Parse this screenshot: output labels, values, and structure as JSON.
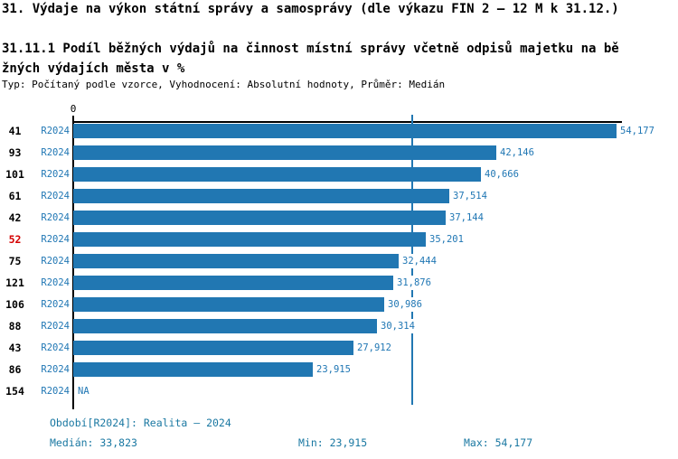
{
  "header": {
    "title": "31. Výdaje na výkon státní správy a samosprávy (dle výkazu FIN 2 – 12 M k 31.12.)",
    "subtitle": "31.11.1 Podíl běžných výdajů na činnost místní správy včetně odpisů majetku na běžných výdajích města v %",
    "meta": "Typ: Počítaný podle vzorce, Vyhodnocení: Absolutní hodnoty, Průměr: Medián"
  },
  "chart_data": {
    "type": "bar",
    "orientation": "horizontal",
    "axis_origin_label": "0",
    "categories": [
      "41",
      "93",
      "101",
      "61",
      "42",
      "52",
      "75",
      "121",
      "106",
      "88",
      "43",
      "86",
      "154"
    ],
    "series_label": "R2024",
    "values": [
      54177,
      42146,
      40666,
      37514,
      37144,
      35201,
      32444,
      31876,
      30986,
      30314,
      27912,
      23915,
      null
    ],
    "value_labels": [
      "54,177",
      "42,146",
      "40,666",
      "37,514",
      "37,144",
      "35,201",
      "32,444",
      "31,876",
      "30,986",
      "30,314",
      "27,912",
      "23,915",
      "NA"
    ],
    "highlighted_category": "52",
    "median": 33823,
    "min": 23915,
    "max": 54177,
    "xlim": [
      0,
      54177
    ],
    "legend_position": "none",
    "grid": false,
    "colors": {
      "bar": "#2177b2",
      "label_blue": "#2077b4",
      "footer_teal": "#1a78a2",
      "highlight_red": "#d40000",
      "axis": "#000000"
    }
  },
  "footer": {
    "period_line": "Období[R2024]: Realita – 2024",
    "median_label": "Medián: 33,823",
    "min_label": "Min: 23,915",
    "max_label": "Max: 54,177"
  }
}
